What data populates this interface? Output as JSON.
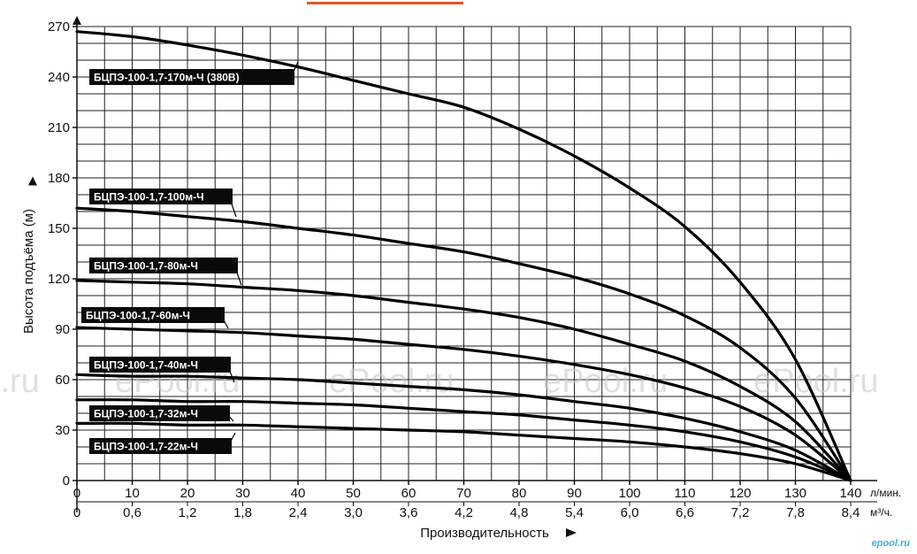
{
  "watermark": "ePool.ru",
  "logo": "epool.ru",
  "chart_data": {
    "type": "line",
    "title": "",
    "xlabel": "Производительность",
    "ylabel": "Высота подъёма (м)",
    "x_unit_primary": "л/мин.",
    "x_unit_secondary": "м³/ч.",
    "xlim": [
      0,
      140
    ],
    "ylim": [
      0,
      270
    ],
    "x_ticks_primary": [
      "0",
      "10",
      "20",
      "30",
      "40",
      "50",
      "60",
      "70",
      "80",
      "90",
      "100",
      "110",
      "120",
      "130",
      "140"
    ],
    "x_ticks_secondary": [
      "0",
      "0,6",
      "1,2",
      "1,8",
      "2,4",
      "3,0",
      "3,6",
      "4,2",
      "4,8",
      "5,4",
      "6,0",
      "6,6",
      "7,2",
      "7,8",
      "8,4"
    ],
    "y_ticks": [
      "0",
      "30",
      "60",
      "90",
      "120",
      "150",
      "180",
      "210",
      "240",
      "270"
    ],
    "grid": true,
    "series": [
      {
        "name": "БЦПЭ-100-1,7-170м-Ч (380В)",
        "x": [
          0,
          10,
          20,
          30,
          40,
          50,
          60,
          70,
          80,
          90,
          100,
          110,
          120,
          130,
          140
        ],
        "y": [
          267,
          264,
          259,
          253,
          246,
          238,
          230,
          222,
          209,
          193,
          174,
          151,
          118,
          72,
          0
        ]
      },
      {
        "name": "БЦПЭ-100-1,7-100м-Ч",
        "x": [
          0,
          10,
          20,
          30,
          40,
          50,
          60,
          70,
          80,
          90,
          100,
          110,
          120,
          130,
          140
        ],
        "y": [
          162,
          160,
          157,
          154,
          150,
          146,
          141,
          136,
          129,
          121,
          111,
          98,
          79,
          49,
          0
        ]
      },
      {
        "name": "БЦПЭ-100-1,7-80м-Ч",
        "x": [
          0,
          10,
          20,
          30,
          40,
          50,
          60,
          70,
          80,
          90,
          100,
          110,
          120,
          130,
          140
        ],
        "y": [
          119,
          118,
          117,
          115,
          113,
          110,
          106,
          102,
          97,
          90,
          81,
          71,
          56,
          35,
          0
        ]
      },
      {
        "name": "БЦПЭ-100-1,7-60м-Ч",
        "x": [
          0,
          10,
          20,
          30,
          40,
          50,
          60,
          70,
          80,
          90,
          100,
          110,
          120,
          130,
          140
        ],
        "y": [
          91,
          90,
          89,
          88,
          86,
          84,
          81,
          78,
          74,
          69,
          63,
          55,
          44,
          27,
          0
        ]
      },
      {
        "name": "БЦПЭ-100-1,7-40м-Ч",
        "x": [
          0,
          10,
          20,
          30,
          40,
          50,
          60,
          70,
          80,
          90,
          100,
          110,
          120,
          130,
          140
        ],
        "y": [
          63,
          62,
          62,
          61,
          60,
          58,
          56,
          54,
          51,
          47,
          43,
          37,
          29,
          18,
          0
        ]
      },
      {
        "name": "БЦПЭ-100-1,7-32м-Ч",
        "x": [
          0,
          10,
          20,
          30,
          40,
          50,
          60,
          70,
          80,
          90,
          100,
          110,
          120,
          130,
          140
        ],
        "y": [
          48,
          48,
          47,
          47,
          46,
          45,
          43,
          41,
          39,
          36,
          33,
          29,
          23,
          14,
          0
        ]
      },
      {
        "name": "БЦПЭ-100-1,7-22м-Ч",
        "x": [
          0,
          10,
          20,
          30,
          40,
          50,
          60,
          70,
          80,
          90,
          100,
          110,
          120,
          130,
          140
        ],
        "y": [
          34,
          34,
          33,
          33,
          32,
          31,
          30,
          29,
          27,
          25,
          23,
          20,
          16,
          10,
          0
        ]
      }
    ]
  }
}
